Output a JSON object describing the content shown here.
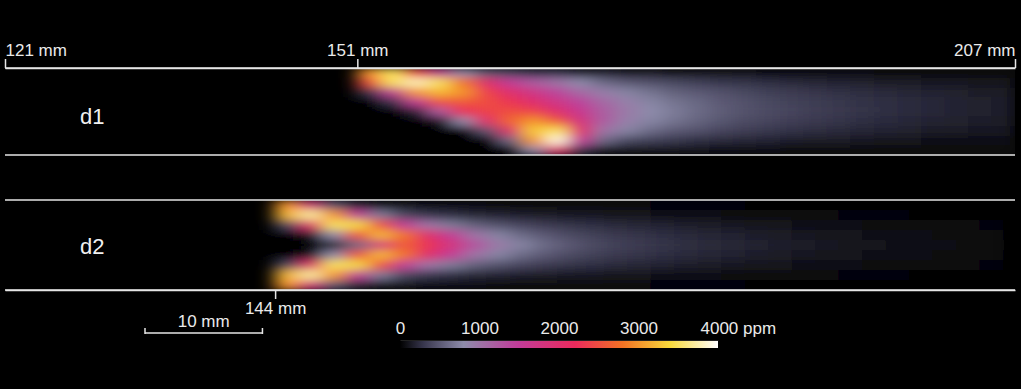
{
  "chart_data": [
    {
      "type": "heatmap",
      "title": "d1",
      "xlim": [
        121,
        207
      ],
      "xticks": [
        {
          "value": 121,
          "label": "121 mm"
        },
        {
          "value": 151,
          "label": "151 mm"
        },
        {
          "value": 207,
          "label": "207 mm"
        }
      ],
      "x": [
        151,
        153,
        155,
        157,
        159,
        161,
        163,
        165,
        167,
        169,
        171,
        173,
        175,
        177,
        179,
        181,
        183,
        185,
        187,
        189,
        191,
        193,
        195,
        197,
        199,
        201,
        203,
        205,
        207
      ],
      "z": [
        [
          3000,
          2500,
          300,
          0,
          0,
          0,
          0,
          0,
          0
        ],
        [
          3500,
          3500,
          1500,
          300,
          0,
          0,
          0,
          0,
          0
        ],
        [
          2500,
          3800,
          3000,
          1500,
          200,
          0,
          0,
          0,
          0
        ],
        [
          1500,
          3500,
          3200,
          2500,
          1200,
          100,
          0,
          0,
          0
        ],
        [
          800,
          2800,
          3000,
          2600,
          2200,
          800,
          0,
          0,
          0
        ],
        [
          500,
          2000,
          2400,
          2500,
          2400,
          2000,
          500,
          0,
          0
        ],
        [
          400,
          1500,
          2000,
          2300,
          2500,
          2700,
          2000,
          600,
          0
        ],
        [
          300,
          1200,
          1700,
          2000,
          2400,
          3000,
          3300,
          3000,
          800
        ],
        [
          300,
          1000,
          1400,
          1700,
          2000,
          2600,
          3500,
          3900,
          2000
        ],
        [
          200,
          800,
          1100,
          1400,
          1600,
          1800,
          2000,
          1500,
          300
        ],
        [
          200,
          600,
          900,
          1100,
          1200,
          1200,
          1000,
          600,
          100
        ],
        [
          150,
          500,
          750,
          900,
          950,
          900,
          750,
          400,
          100
        ],
        [
          150,
          450,
          650,
          750,
          800,
          750,
          600,
          350,
          100
        ],
        [
          100,
          400,
          550,
          650,
          700,
          650,
          500,
          300,
          100
        ],
        [
          100,
          350,
          500,
          580,
          600,
          560,
          450,
          250,
          100
        ],
        [
          100,
          300,
          450,
          500,
          520,
          480,
          380,
          220,
          80
        ],
        [
          100,
          280,
          400,
          450,
          460,
          420,
          340,
          200,
          80
        ],
        [
          80,
          250,
          350,
          400,
          420,
          380,
          300,
          180,
          80
        ],
        [
          80,
          220,
          320,
          360,
          380,
          340,
          270,
          160,
          60
        ],
        [
          80,
          200,
          290,
          330,
          340,
          310,
          240,
          150,
          60
        ],
        [
          70,
          180,
          260,
          300,
          310,
          280,
          220,
          140,
          60
        ],
        [
          70,
          170,
          240,
          270,
          280,
          250,
          200,
          120,
          50
        ],
        [
          60,
          150,
          220,
          250,
          250,
          230,
          180,
          110,
          50
        ],
        [
          60,
          140,
          200,
          230,
          230,
          210,
          170,
          100,
          50
        ],
        [
          50,
          130,
          180,
          210,
          210,
          190,
          150,
          90,
          40
        ],
        [
          50,
          120,
          170,
          190,
          190,
          170,
          140,
          80,
          40
        ],
        [
          50,
          110,
          150,
          170,
          170,
          160,
          130,
          80,
          40
        ],
        [
          40,
          100,
          140,
          160,
          160,
          150,
          120,
          70,
          40
        ]
      ]
    },
    {
      "type": "heatmap",
      "title": "d2",
      "xlim": [
        121,
        207
      ],
      "xticks": [
        {
          "value": 144,
          "label": "144 mm"
        }
      ],
      "x": [
        144,
        146,
        148,
        150,
        152,
        154,
        156,
        158,
        160,
        162,
        164,
        166,
        168,
        170,
        172,
        174,
        176,
        178,
        180,
        182,
        184,
        186,
        188,
        190,
        192,
        194,
        196,
        198,
        200,
        202,
        204,
        206
      ],
      "z": [
        [
          3000,
          3200,
          400,
          0,
          0,
          0,
          400,
          3200,
          3000
        ],
        [
          1800,
          3700,
          2000,
          100,
          0,
          100,
          2000,
          3700,
          1800
        ],
        [
          500,
          3000,
          3500,
          800,
          100,
          800,
          3500,
          3000,
          500
        ],
        [
          200,
          1500,
          3400,
          2500,
          600,
          2500,
          3400,
          1500,
          200
        ],
        [
          100,
          700,
          2500,
          3200,
          1800,
          3200,
          2500,
          700,
          100
        ],
        [
          100,
          400,
          1500,
          2800,
          2600,
          2800,
          1500,
          400,
          100
        ],
        [
          80,
          300,
          1000,
          2000,
          2300,
          2000,
          1000,
          300,
          80
        ],
        [
          80,
          250,
          700,
          1500,
          1800,
          1500,
          700,
          250,
          80
        ],
        [
          70,
          200,
          550,
          1000,
          1300,
          1000,
          550,
          200,
          70
        ],
        [
          60,
          180,
          450,
          750,
          950,
          750,
          450,
          180,
          60
        ],
        [
          60,
          160,
          380,
          600,
          750,
          600,
          380,
          160,
          60
        ],
        [
          50,
          150,
          320,
          500,
          600,
          500,
          320,
          150,
          50
        ],
        [
          50,
          130,
          280,
          420,
          500,
          420,
          280,
          130,
          50
        ],
        [
          40,
          120,
          250,
          360,
          420,
          360,
          250,
          120,
          40
        ],
        [
          40,
          110,
          220,
          310,
          360,
          310,
          220,
          110,
          40
        ],
        [
          40,
          100,
          200,
          280,
          320,
          280,
          200,
          100,
          40
        ],
        [
          30,
          90,
          180,
          250,
          280,
          250,
          180,
          90,
          30
        ],
        [
          30,
          80,
          160,
          220,
          250,
          220,
          160,
          80,
          30
        ],
        [
          30,
          70,
          140,
          200,
          220,
          200,
          140,
          70,
          30
        ],
        [
          30,
          60,
          120,
          180,
          200,
          180,
          120,
          60,
          30
        ],
        [
          20,
          50,
          110,
          160,
          180,
          160,
          110,
          50,
          20
        ],
        [
          20,
          50,
          100,
          140,
          160,
          140,
          100,
          50,
          20
        ],
        [
          20,
          40,
          90,
          120,
          140,
          120,
          90,
          40,
          20
        ],
        [
          20,
          40,
          80,
          110,
          120,
          110,
          80,
          40,
          20
        ],
        [
          20,
          30,
          70,
          100,
          110,
          100,
          70,
          30,
          20
        ],
        [
          10,
          30,
          60,
          90,
          100,
          90,
          60,
          30,
          10
        ],
        [
          10,
          30,
          50,
          80,
          90,
          80,
          50,
          30,
          10
        ],
        [
          10,
          20,
          50,
          70,
          80,
          70,
          50,
          20,
          10
        ],
        [
          10,
          20,
          40,
          60,
          70,
          60,
          40,
          20,
          10
        ],
        [
          10,
          20,
          40,
          50,
          60,
          50,
          40,
          20,
          10
        ],
        [
          10,
          10,
          30,
          40,
          50,
          40,
          30,
          10,
          10
        ]
      ],
      "scale_bar": {
        "label": "10 mm",
        "value": 10
      },
      "colorbar": {
        "range": [
          0,
          4000
        ],
        "ticks": [
          0,
          1000,
          2000,
          3000,
          {
            "value": 4000,
            "label": "4000 ppm"
          }
        ]
      }
    }
  ]
}
